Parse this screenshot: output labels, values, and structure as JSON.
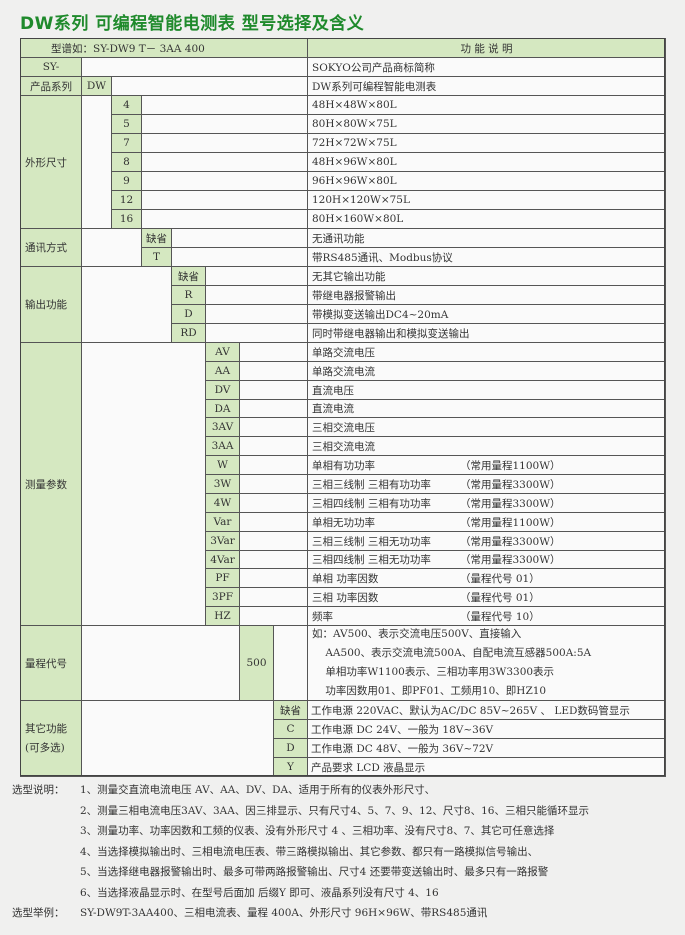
{
  "title": "DW系列 可编程智能电测表 型号选择及含义",
  "header": {
    "model_example": "型谱如：SY-DW9  T－  3AA  400",
    "function": "功 能 说 明"
  },
  "brand": {
    "code": "SY-",
    "desc": "SOKYO公司产品商标简称"
  },
  "series": {
    "label": "产品系列",
    "code": "DW",
    "desc": "DW系列可编程智能电测表"
  },
  "size": {
    "label": "外形尺寸",
    "rows": [
      {
        "code": "4",
        "desc": "48H×48W×80L"
      },
      {
        "code": "5",
        "desc": "80H×80W×75L"
      },
      {
        "code": "7",
        "desc": "72H×72W×75L"
      },
      {
        "code": "8",
        "desc": "48H×96W×80L"
      },
      {
        "code": "9",
        "desc": "96H×96W×80L"
      },
      {
        "code": "12",
        "desc": "120H×120W×75L"
      },
      {
        "code": "16",
        "desc": "80H×160W×80L"
      }
    ]
  },
  "comm": {
    "label": "通讯方式",
    "rows": [
      {
        "code": "缺省",
        "desc": "无通讯功能"
      },
      {
        "code": "T",
        "desc": "带RS485通讯、Modbus协议"
      }
    ]
  },
  "output": {
    "label": "输出功能",
    "rows": [
      {
        "code": "缺省",
        "desc": "无其它输出功能"
      },
      {
        "code": "R",
        "desc": "带继电器报警输出"
      },
      {
        "code": "D",
        "desc": "带模拟变送输出DC4~20mA"
      },
      {
        "code": "RD",
        "desc": "同时带继电器输出和模拟变送输出"
      }
    ]
  },
  "measure": {
    "label": "测量参数",
    "rows": [
      {
        "code": "AV",
        "desc": "单路交流电压",
        "note": ""
      },
      {
        "code": "AA",
        "desc": "单路交流电流",
        "note": ""
      },
      {
        "code": "DV",
        "desc": "直流电压",
        "note": ""
      },
      {
        "code": "DA",
        "desc": "直流电流",
        "note": ""
      },
      {
        "code": "3AV",
        "desc": "三相交流电压",
        "note": ""
      },
      {
        "code": "3AA",
        "desc": "三相交流电流",
        "note": ""
      },
      {
        "code": "W",
        "desc": "单相有功功率",
        "note": "（常用量程1100W）"
      },
      {
        "code": "3W",
        "desc": "三相三线制  三相有功功率",
        "note": "（常用量程3300W）"
      },
      {
        "code": "4W",
        "desc": "三相四线制  三相有功功率",
        "note": "（常用量程3300W）"
      },
      {
        "code": "Var",
        "desc": "单相无功功率",
        "note": "（常用量程1100W）"
      },
      {
        "code": "3Var",
        "desc": "三相三线制  三相无功功率",
        "note": "（常用量程3300W）"
      },
      {
        "code": "4Var",
        "desc": "三相四线制  三相无功功率",
        "note": "（常用量程3300W）"
      },
      {
        "code": "PF",
        "desc": "单相  功率因数",
        "note": "（量程代号 01）"
      },
      {
        "code": "3PF",
        "desc": "三相   功率因数",
        "note": "（量程代号 01）"
      },
      {
        "code": "HZ",
        "desc": "频率",
        "note": "（量程代号 10）"
      }
    ]
  },
  "range": {
    "label": "量程代号",
    "code": "500",
    "lines": [
      "如：AV500、表示交流电压500V、直接输入",
      "    AA500、表示交流电流500A、自配电流互感器500A:5A",
      "    单相功率W1100表示、三相功率用3W3300表示",
      "    功率因数用01、即PF01、工频用10、即HZ10"
    ]
  },
  "other": {
    "label_line1": "其它功能",
    "label_line2": "(可多选)",
    "rows": [
      {
        "code": "缺省",
        "desc": "工作电源 220VAC、默认为AC/DC 85V~265V 、 LED数码管显示"
      },
      {
        "code": "C",
        "desc": "工作电源  DC 24V、一般为  18V~36V"
      },
      {
        "code": "D",
        "desc": "工作电源  DC 48V、一般为  36V~72V"
      },
      {
        "code": "Y",
        "desc": "产品要求  LCD 液晶显示"
      }
    ]
  },
  "notes": {
    "label": "选型说明：",
    "items": [
      "1、测量交直流电流电压 AV、AA、DV、DA、适用于所有的仪表外形尺寸、",
      "2、测量三相电流电压3AV、3AA、因三排显示、只有尺寸4、5、7、9、12、尺寸8、16、三相只能循环显示",
      "3、测量功率、功率因数和工频的仪表、没有外形尺寸 4 、三相功率、没有尺寸8、7、其它可任意选择",
      "4、当选择模拟输出时、三相电流电压表、带三路模拟输出、其它参数、都只有一路模拟信号输出、",
      "5、当选择继电器报警输出时、最多可带两路报警输出、尺寸4 还要带变送输出时、最多只有一路报警",
      "6、当选择液晶显示时、在型号后面加 后缀Y 即可、液晶系列没有尺寸 4、16"
    ],
    "example_label": "选型举例：",
    "example": "SY-DW9T-3AA400、三相电流表、量程 400A、外形尺寸 96H×96W、带RS485通讯"
  },
  "colors": {
    "title": "#1f8a2c",
    "label_bg": "#d5e8c1",
    "border": "#555555"
  }
}
